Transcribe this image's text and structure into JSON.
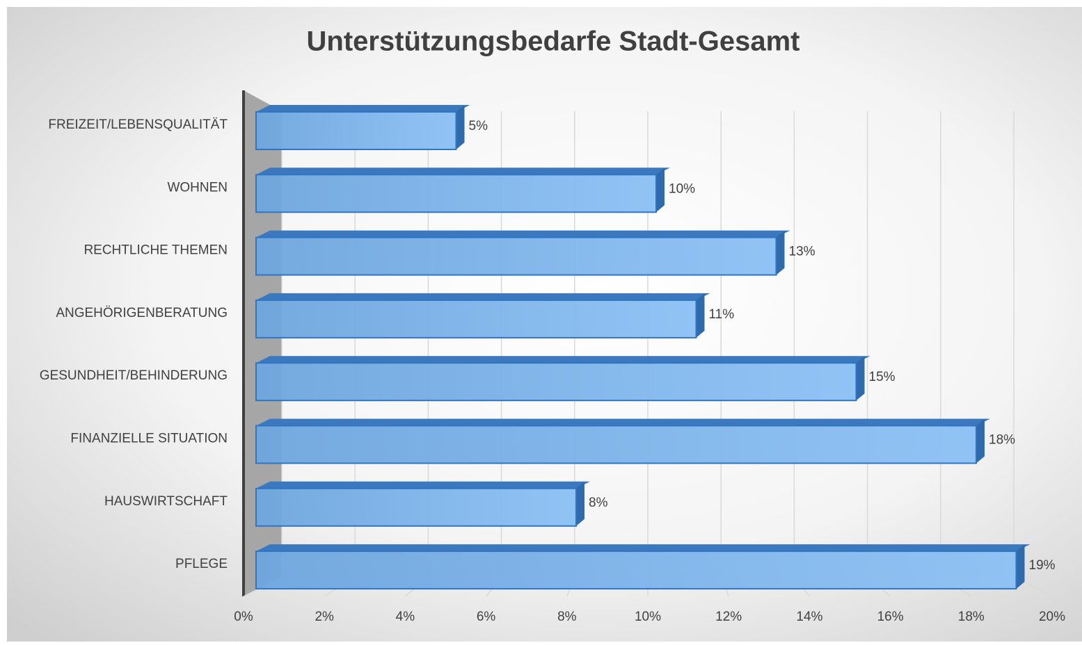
{
  "chart_data": {
    "type": "bar3d_horizontal",
    "title": "Unterstützungsbedarfe Stadt-Gesamt",
    "categories": [
      "FREIZEIT/LEBENSQUALITÄT",
      "WOHNEN",
      "RECHTLICHE THEMEN",
      "ANGEHÖRIGENBERATUNG",
      "GESUNDHEIT/BEHINDERUNG",
      "FINANZIELLE SITUATION",
      "HAUSWIRTSCHAFT",
      "PFLEGE"
    ],
    "values": [
      5,
      10,
      13,
      11,
      15,
      18,
      8,
      19
    ],
    "value_labels": [
      "5%",
      "10%",
      "13%",
      "11%",
      "15%",
      "18%",
      "8%",
      "19%"
    ],
    "color": "#6fa8e0",
    "xlim": [
      0,
      20
    ],
    "xticks": [
      {
        "value": 0,
        "label": "0%"
      },
      {
        "value": 2,
        "label": "2%"
      },
      {
        "value": 4,
        "label": "4%"
      },
      {
        "value": 6,
        "label": "6%"
      },
      {
        "value": 8,
        "label": "8%"
      },
      {
        "value": 10,
        "label": "10%"
      },
      {
        "value": 12,
        "label": "12%"
      },
      {
        "value": 14,
        "label": "14%"
      },
      {
        "value": 16,
        "label": "16%"
      },
      {
        "value": 18,
        "label": "18%"
      },
      {
        "value": 20,
        "label": "20%"
      }
    ],
    "grid": true
  }
}
